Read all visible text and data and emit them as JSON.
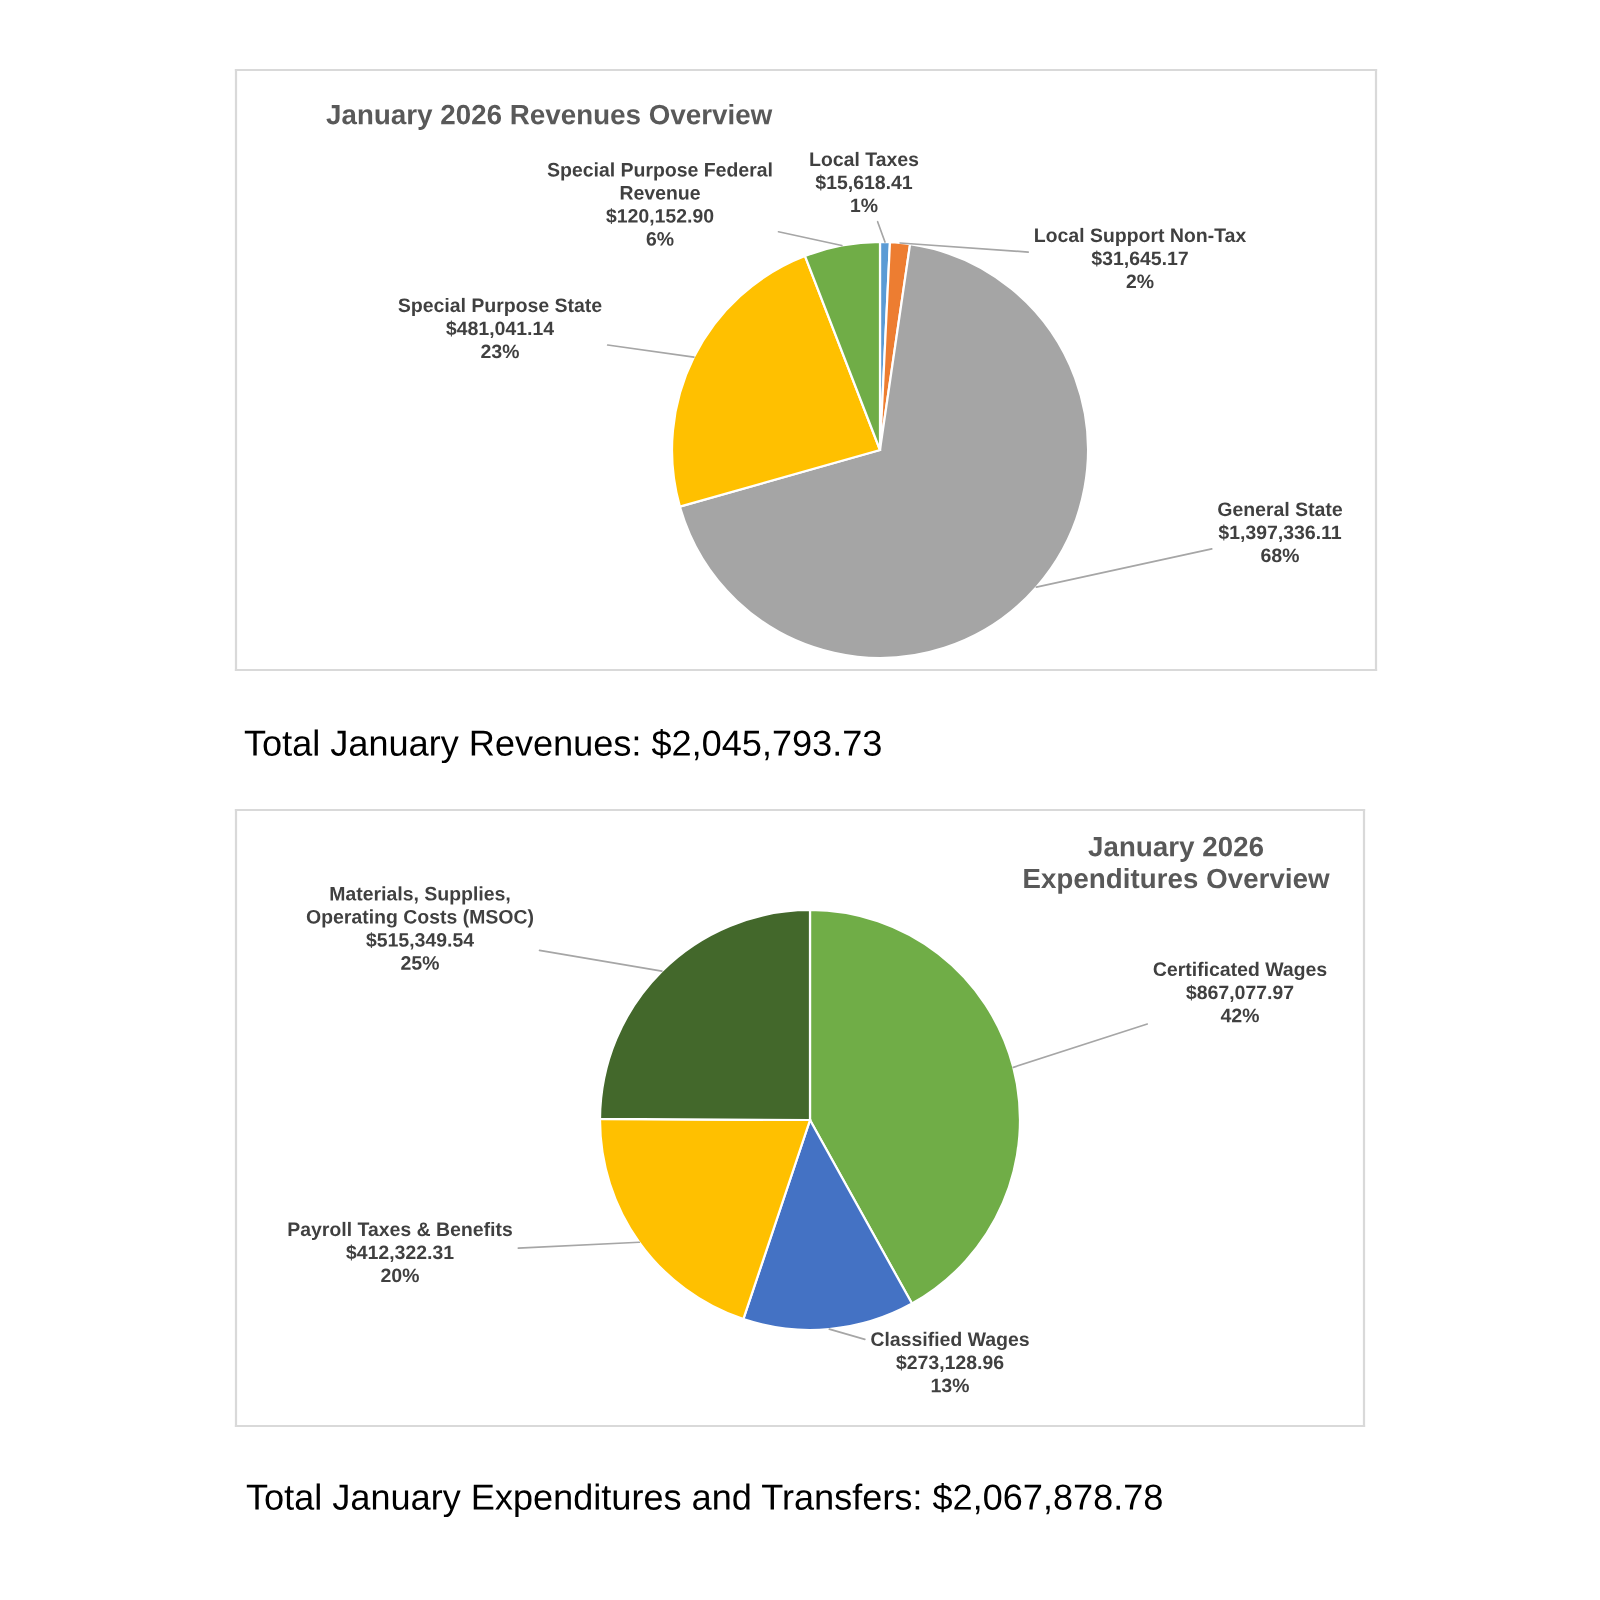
{
  "chart_data": [
    {
      "type": "pie",
      "title": "January 2026 Revenues Overview",
      "categories": [
        "Local Taxes",
        "Local Support Non-Tax",
        "General State",
        "Special Purpose State",
        "Special Purpose Federal\nRevenue"
      ],
      "values": [
        15618.41,
        31645.17,
        1397336.11,
        481041.14,
        120152.9
      ],
      "colors": [
        "#5b9bd5",
        "#ed7d31",
        "#a5a5a5",
        "#ffc000",
        "#70ad47"
      ],
      "value_labels": [
        "$15,618.41\n1%",
        "$31,645.17\n2%",
        "$1,397,336.11\n68%",
        "$481,041.14\n23%",
        "$120,152.90\n6%"
      ],
      "annotations": [
        "Total January Revenues: $2,045,793.73"
      ]
    },
    {
      "type": "pie",
      "title": "January 2026\nExpenditures Overview",
      "categories": [
        "Certificated Wages",
        "Classified Wages",
        "Payroll Taxes & Benefits",
        "Materials, Supplies,\nOperating Costs (MSOC)"
      ],
      "values": [
        867077.97,
        273128.96,
        412322.31,
        515349.54
      ],
      "colors": [
        "#70ad47",
        "#4472c4",
        "#ffc000",
        "#43682b"
      ],
      "value_labels": [
        "$867,077.97\n42%",
        "$273,128.96\n13%",
        "$412,322.31\n20%",
        "$515,349.54\n25%"
      ],
      "annotations": [
        "Total January Expenditures and Transfers: $2,067,878.78"
      ]
    }
  ]
}
